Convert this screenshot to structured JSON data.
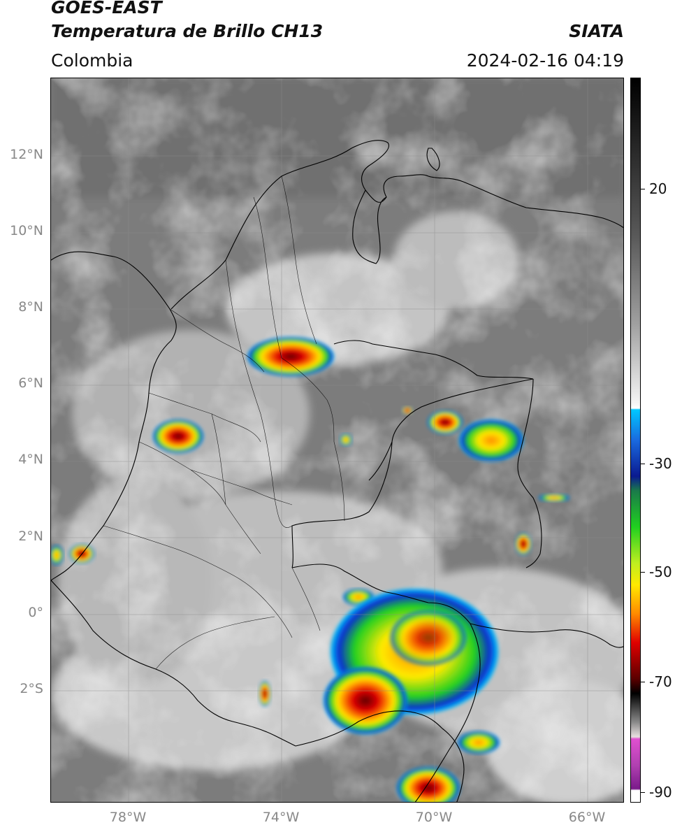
{
  "header": {
    "title_line1": "GOES-EAST",
    "title_line2": "Temperatura de Brillo CH13",
    "organization": "SIATA",
    "region": "Colombia",
    "timestamp": "2024-02-16 04:19"
  },
  "map": {
    "latitude_labels": [
      "12°N",
      "10°N",
      "8°N",
      "6°N",
      "4°N",
      "2°N",
      "0°",
      "2°S"
    ],
    "longitude_labels": [
      "78°W",
      "74°W",
      "70°W",
      "66°W"
    ],
    "gridlines": true,
    "extent": {
      "lon_min": -80,
      "lon_max": -65,
      "lat_min": -4.8,
      "lat_max": 14.1
    }
  },
  "colorbar": {
    "ticks": [
      "20",
      "-30",
      "-50",
      "-70",
      "-90"
    ],
    "range": [
      -92,
      34
    ],
    "colors": {
      "warm_gray_dark": "#000000",
      "neutral_light": "#ffffff",
      "cyan": "#00c8ff",
      "blue": "#0a2ad0",
      "green": "#20d020",
      "yellow": "#ffea00",
      "orange": "#ff8a00",
      "red": "#e00000",
      "dark_red": "#5a0000",
      "magenta": "#e050d0",
      "purple": "#7a1a8a"
    }
  }
}
